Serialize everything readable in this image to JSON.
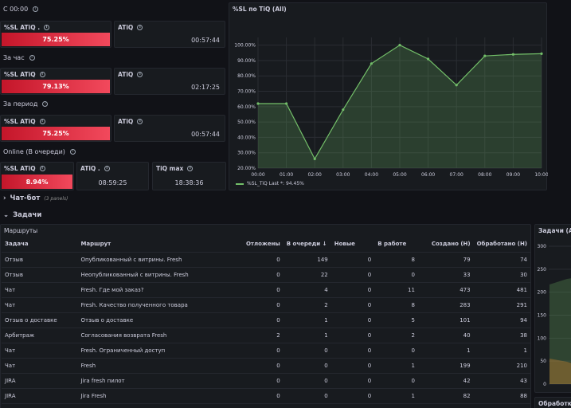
{
  "groups": [
    {
      "title": "С 00:00",
      "sl_label": "%SL ATiQ .",
      "sl_value": "75.25%",
      "atiq_label": "ATiQ",
      "atiq_value": "00:57:44"
    },
    {
      "title": "За час",
      "sl_label": "%SL ATiQ",
      "sl_value": "79.13%",
      "atiq_label": "ATiQ",
      "atiq_value": "02:17:25"
    },
    {
      "title": "За период",
      "sl_label": "%SL ATiQ",
      "sl_value": "75.25%",
      "atiq_label": "ATiQ",
      "atiq_value": "00:57:44"
    }
  ],
  "online": {
    "title": "Online (В очереди)",
    "sl_label": "%SL ATiQ",
    "sl_value": "8.94%",
    "atiq_label": "ATiQ .",
    "atiq_value": "08:59:25",
    "tiq_label": "TiQ max",
    "tiq_value": "18:38:36"
  },
  "colors": {
    "red_start": "#c4162a",
    "red_end": "#f2495c",
    "green": "#73bf69",
    "bg": "#111217",
    "panel": "#181b1f"
  },
  "chart_data": {
    "type": "area",
    "title": "%SL по TiQ (All)",
    "x": [
      "00:00",
      "01:00",
      "02:00",
      "03:00",
      "04:00",
      "05:00",
      "06:00",
      "07:00",
      "08:00",
      "09:00",
      "10:00"
    ],
    "series": [
      {
        "name": "%SL_TiQ",
        "values": [
          62,
          62,
          26,
          58,
          88,
          100,
          91,
          74,
          93,
          94,
          94.45
        ]
      }
    ],
    "ylim": [
      20,
      105
    ],
    "yticks": [
      "100.00%",
      "90.00%",
      "80.00%",
      "70.00%",
      "60.00%",
      "50.00%",
      "40.00%",
      "30.00%",
      "20.00%"
    ],
    "ytick_values": [
      100,
      90,
      80,
      70,
      60,
      50,
      40,
      30,
      20
    ],
    "legend": "%SL_TiQ  Last *: 94.45%",
    "grid": true
  },
  "sections": {
    "chatbot": {
      "title": "Чат-бот",
      "sub": "(3 panels)"
    },
    "tasks": {
      "title": "Задачи"
    }
  },
  "routes": {
    "title": "Маршруты",
    "columns": [
      "Задача",
      "Маршрут",
      "Отложены",
      "В очереди ↓",
      "Новые",
      "В работе",
      "Создано (Н)",
      "Обработано (Н)"
    ],
    "rows": [
      [
        "Отзыв",
        "Опубликованный с витрины. Fresh",
        "0",
        "149",
        "0",
        "8",
        "79",
        "74"
      ],
      [
        "Отзыв",
        "Неопубликованный с витрины. Fresh",
        "0",
        "22",
        "0",
        "0",
        "33",
        "30"
      ],
      [
        "Чат",
        "Fresh. Где мой заказ?",
        "0",
        "4",
        "0",
        "11",
        "473",
        "481"
      ],
      [
        "Чат",
        "Fresh. Качество полученного товара",
        "0",
        "2",
        "0",
        "8",
        "283",
        "291"
      ],
      [
        "Отзыв о доставке",
        "Отзыв о доставке",
        "0",
        "1",
        "0",
        "5",
        "101",
        "94"
      ],
      [
        "Арбитраж",
        "Согласования возврата Fresh",
        "2",
        "1",
        "0",
        "2",
        "40",
        "38"
      ],
      [
        "Чат",
        "Fresh. Ограниченный доступ",
        "0",
        "0",
        "0",
        "0",
        "1",
        "1"
      ],
      [
        "Чат",
        "Fresh",
        "0",
        "0",
        "0",
        "1",
        "199",
        "210"
      ],
      [
        "JIRA",
        "Jira fresh пилот",
        "0",
        "0",
        "0",
        "0",
        "42",
        "43"
      ],
      [
        "JIRA",
        "Jira Fresh",
        "0",
        "0",
        "0",
        "1",
        "82",
        "88"
      ]
    ]
  },
  "side_panels": {
    "tasks_all_title": "Задачи (All)",
    "tasks_all_yticks": [
      "300",
      "250",
      "200",
      "150",
      "100",
      "50",
      "0"
    ],
    "processing_title": "Обработка"
  }
}
